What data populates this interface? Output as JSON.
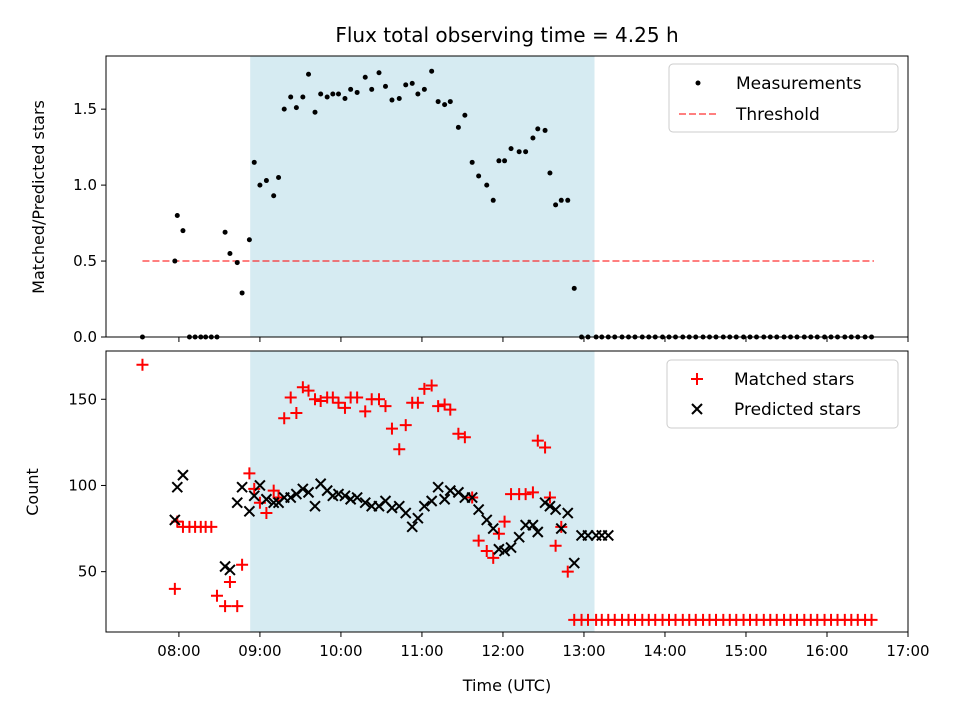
{
  "title": "Flux total observing time = 4.25 h",
  "colors": {
    "shade": "#add8e6",
    "threshold": "#ff0000",
    "matched": "#ff0000",
    "predicted": "#000000",
    "measurement": "#000000"
  },
  "chart_data": [
    {
      "type": "scatter",
      "ylabel": "Matched/Predicted stars",
      "xlim": [
        7.1,
        17.0
      ],
      "ylim": [
        0,
        1.85
      ],
      "yticks": [
        0.0,
        0.5,
        1.0,
        1.5
      ],
      "ytick_labels": [
        "0.0",
        "0.5",
        "1.0",
        "1.5"
      ],
      "shaded_region": [
        8.88,
        13.13
      ],
      "threshold": {
        "value": 0.5,
        "x_range": [
          7.55,
          16.58
        ],
        "style": "dashed",
        "alpha": 0.5
      },
      "legend": {
        "position": "top-right",
        "entries": [
          "Measurements",
          "Threshold"
        ]
      },
      "series": [
        {
          "name": "Measurements",
          "marker": "dot",
          "x": [
            7.55,
            7.95,
            7.98,
            8.05,
            8.13,
            8.2,
            8.27,
            8.33,
            8.4,
            8.47,
            8.57,
            8.63,
            8.72,
            8.78,
            8.87,
            8.93,
            9.0,
            9.08,
            9.17,
            9.23,
            9.3,
            9.38,
            9.45,
            9.53,
            9.6,
            9.68,
            9.75,
            9.83,
            9.9,
            9.97,
            10.05,
            10.12,
            10.2,
            10.3,
            10.38,
            10.47,
            10.55,
            10.63,
            10.72,
            10.8,
            10.88,
            10.95,
            11.03,
            11.12,
            11.2,
            11.28,
            11.35,
            11.45,
            11.53,
            11.62,
            11.7,
            11.8,
            11.88,
            11.95,
            12.02,
            12.1,
            12.2,
            12.28,
            12.37,
            12.43,
            12.52,
            12.58,
            12.65,
            12.72,
            12.8,
            12.88,
            12.97,
            13.05,
            13.15,
            13.22,
            13.3,
            13.38,
            13.47,
            13.55,
            13.63,
            13.72,
            13.8,
            13.88,
            13.97,
            14.05,
            14.13,
            14.22,
            14.3,
            14.38,
            14.47,
            14.55,
            14.63,
            14.72,
            14.8,
            14.88,
            14.97,
            15.05,
            15.13,
            15.22,
            15.3,
            15.38,
            15.47,
            15.55,
            15.63,
            15.72,
            15.8,
            15.88,
            15.97,
            16.05,
            16.13,
            16.22,
            16.3,
            16.38,
            16.47,
            16.55
          ],
          "y": [
            0.0,
            0.5,
            0.8,
            0.7,
            0.0,
            0.0,
            0.0,
            0.0,
            0.0,
            0.0,
            0.69,
            0.55,
            0.49,
            0.29,
            0.64,
            1.15,
            1.0,
            1.03,
            0.93,
            1.05,
            1.5,
            1.58,
            1.51,
            1.58,
            1.73,
            1.48,
            1.6,
            1.58,
            1.6,
            1.6,
            1.57,
            1.63,
            1.61,
            1.71,
            1.63,
            1.74,
            1.65,
            1.56,
            1.57,
            1.66,
            1.67,
            1.6,
            1.63,
            1.75,
            1.55,
            1.53,
            1.55,
            1.38,
            1.46,
            1.15,
            1.06,
            1.0,
            0.9,
            1.16,
            1.16,
            1.24,
            1.22,
            1.22,
            1.31,
            1.37,
            1.36,
            1.08,
            0.87,
            0.9,
            0.9,
            0.32,
            0.0,
            0.0,
            0.0,
            0.0,
            0.0,
            0.0,
            0.0,
            0.0,
            0.0,
            0.0,
            0.0,
            0.0,
            0.0,
            0.0,
            0.0,
            0.0,
            0.0,
            0.0,
            0.0,
            0.0,
            0.0,
            0.0,
            0.0,
            0.0,
            0.0,
            0.0,
            0.0,
            0.0,
            0.0,
            0.0,
            0.0,
            0.0,
            0.0,
            0.0,
            0.0,
            0.0,
            0.0,
            0.0,
            0.0,
            0.0,
            0.0,
            0.0,
            0.0,
            0.0
          ]
        }
      ]
    },
    {
      "type": "scatter",
      "xlabel": "Time (UTC)",
      "ylabel": "Count",
      "xlim": [
        7.1,
        17.0
      ],
      "ylim": [
        15,
        178
      ],
      "xticks": [
        8,
        9,
        10,
        11,
        12,
        13,
        14,
        15,
        16,
        17
      ],
      "xtick_labels": [
        "08:00",
        "09:00",
        "10:00",
        "11:00",
        "12:00",
        "13:00",
        "14:00",
        "15:00",
        "16:00",
        "17:00"
      ],
      "yticks": [
        50,
        100,
        150
      ],
      "ytick_labels": [
        "50",
        "100",
        "150"
      ],
      "shaded_region": [
        8.88,
        13.13
      ],
      "legend": {
        "position": "top-right",
        "entries": [
          "Matched stars",
          "Predicted stars"
        ]
      },
      "series": [
        {
          "name": "Matched stars",
          "marker": "plus",
          "x": [
            7.55,
            7.95,
            7.98,
            8.05,
            8.13,
            8.2,
            8.27,
            8.33,
            8.4,
            8.47,
            8.57,
            8.63,
            8.72,
            8.78,
            8.87,
            8.93,
            9.0,
            9.08,
            9.17,
            9.23,
            9.3,
            9.38,
            9.45,
            9.53,
            9.6,
            9.68,
            9.75,
            9.83,
            9.9,
            9.97,
            10.05,
            10.12,
            10.2,
            10.3,
            10.38,
            10.47,
            10.55,
            10.63,
            10.72,
            10.8,
            10.88,
            10.95,
            11.03,
            11.12,
            11.2,
            11.28,
            11.35,
            11.45,
            11.53,
            11.62,
            11.7,
            11.8,
            11.88,
            11.95,
            12.02,
            12.1,
            12.2,
            12.28,
            12.37,
            12.43,
            12.52,
            12.58,
            12.65,
            12.72,
            12.8,
            12.88,
            12.97,
            13.05,
            13.15,
            13.22,
            13.3,
            13.38,
            13.47,
            13.55,
            13.63,
            13.72,
            13.8,
            13.88,
            13.97,
            14.05,
            14.13,
            14.22,
            14.3,
            14.38,
            14.47,
            14.55,
            14.63,
            14.72,
            14.8,
            14.88,
            14.97,
            15.05,
            15.13,
            15.22,
            15.3,
            15.38,
            15.47,
            15.55,
            15.63,
            15.72,
            15.8,
            15.88,
            15.97,
            16.05,
            16.13,
            16.22,
            16.3,
            16.38,
            16.47,
            16.55
          ],
          "y": [
            170,
            40,
            79,
            76,
            76,
            76,
            76,
            76,
            76,
            36,
            30,
            44,
            30,
            54,
            107,
            98,
            90,
            84,
            97,
            93,
            139,
            151,
            142,
            157,
            155,
            150,
            149,
            151,
            151,
            148,
            145,
            151,
            151,
            143,
            150,
            150,
            146,
            133,
            121,
            135,
            148,
            148,
            156,
            158,
            146,
            147,
            144,
            130,
            128,
            93,
            68,
            62,
            58,
            72,
            79,
            95,
            95,
            95,
            96,
            126,
            122,
            93,
            65,
            76,
            50,
            22,
            22,
            22,
            22,
            22,
            22,
            22,
            22,
            22,
            22,
            22,
            22,
            22,
            22,
            22,
            22,
            22,
            22,
            22,
            22,
            22,
            22,
            22,
            22,
            22,
            22,
            22,
            22,
            22,
            22,
            22,
            22,
            22,
            22,
            22,
            22,
            22,
            22,
            22,
            22,
            22,
            22,
            22,
            22,
            22
          ]
        },
        {
          "name": "Predicted stars",
          "marker": "x",
          "x": [
            7.95,
            7.98,
            8.05,
            8.57,
            8.63,
            8.72,
            8.78,
            8.87,
            8.93,
            9.0,
            9.08,
            9.17,
            9.23,
            9.3,
            9.38,
            9.45,
            9.53,
            9.6,
            9.68,
            9.75,
            9.83,
            9.9,
            9.97,
            10.05,
            10.12,
            10.2,
            10.3,
            10.38,
            10.47,
            10.55,
            10.63,
            10.72,
            10.8,
            10.88,
            10.95,
            11.03,
            11.12,
            11.2,
            11.28,
            11.35,
            11.45,
            11.53,
            11.62,
            11.7,
            11.8,
            11.88,
            11.95,
            12.02,
            12.1,
            12.2,
            12.28,
            12.37,
            12.43,
            12.52,
            12.58,
            12.65,
            12.72,
            12.8,
            12.88,
            12.97,
            13.05,
            13.15,
            13.22,
            13.3
          ],
          "y": [
            80,
            99,
            106,
            53,
            51,
            90,
            99,
            85,
            94,
            100,
            92,
            90,
            90,
            93,
            93,
            95,
            98,
            96,
            88,
            101,
            97,
            94,
            95,
            94,
            92,
            93,
            90,
            88,
            88,
            91,
            87,
            88,
            84,
            76,
            81,
            88,
            91,
            99,
            92,
            97,
            96,
            93,
            93,
            86,
            80,
            75,
            63,
            62,
            64,
            70,
            77,
            77,
            73,
            90,
            88,
            86,
            75,
            84,
            55,
            71,
            71,
            71,
            71,
            71
          ]
        }
      ]
    }
  ]
}
